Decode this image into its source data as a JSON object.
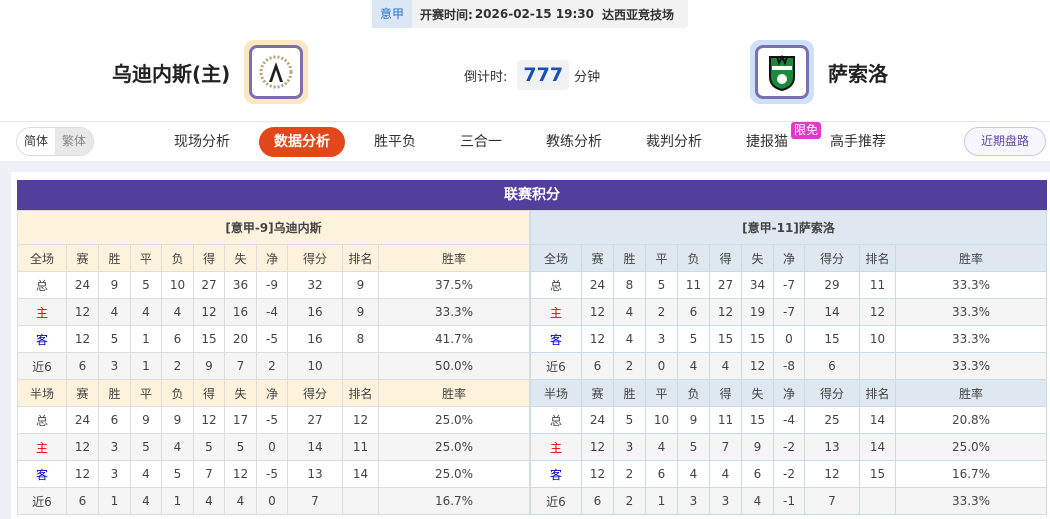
{
  "match": {
    "league": "意甲",
    "time_label": "开赛时间:",
    "time": "2026-02-15 19:30",
    "venue": "达西亚竞技场"
  },
  "home": {
    "name": "乌迪内斯(主)",
    "logo": "udinese-crest"
  },
  "away": {
    "name": "萨索洛",
    "logo": "sassuolo-crest"
  },
  "countdown": {
    "label": "倒计时:",
    "value": "777",
    "unit": "分钟"
  },
  "lang": {
    "simplified": "简体",
    "traditional": "繁体"
  },
  "nav": [
    "现场分析",
    "数据分析",
    "胜平负",
    "三合一",
    "教练分析",
    "裁判分析",
    "捷报猫",
    "高手推荐"
  ],
  "nav_active": "数据分析",
  "badge": "限免",
  "recent_button": "近期盘路",
  "colors": {
    "accent": "#e2461b",
    "title_bar": "#523f9b",
    "home_row": "#e00000",
    "away_row": "#0000cc"
  },
  "standings": {
    "title": "联赛积分",
    "columns_full": [
      "全场",
      "赛",
      "胜",
      "平",
      "负",
      "得",
      "失",
      "净",
      "得分",
      "排名",
      "胜率"
    ],
    "columns_half": [
      "半场",
      "赛",
      "胜",
      "平",
      "负",
      "得",
      "失",
      "净",
      "得分",
      "排名",
      "胜率"
    ],
    "home": {
      "header": "[意甲-9]乌迪内斯",
      "full": [
        [
          "总",
          "24",
          "9",
          "5",
          "10",
          "27",
          "36",
          "-9",
          "32",
          "9",
          "37.5%"
        ],
        [
          "主",
          "12",
          "4",
          "4",
          "4",
          "12",
          "16",
          "-4",
          "16",
          "9",
          "33.3%"
        ],
        [
          "客",
          "12",
          "5",
          "1",
          "6",
          "15",
          "20",
          "-5",
          "16",
          "8",
          "41.7%"
        ],
        [
          "近6",
          "6",
          "3",
          "1",
          "2",
          "9",
          "7",
          "2",
          "10",
          "",
          "50.0%"
        ]
      ],
      "half": [
        [
          "总",
          "24",
          "6",
          "9",
          "9",
          "12",
          "17",
          "-5",
          "27",
          "12",
          "25.0%"
        ],
        [
          "主",
          "12",
          "3",
          "5",
          "4",
          "5",
          "5",
          "0",
          "14",
          "11",
          "25.0%"
        ],
        [
          "客",
          "12",
          "3",
          "4",
          "5",
          "7",
          "12",
          "-5",
          "13",
          "14",
          "25.0%"
        ],
        [
          "近6",
          "6",
          "1",
          "4",
          "1",
          "4",
          "4",
          "0",
          "7",
          "",
          "16.7%"
        ]
      ]
    },
    "away": {
      "header": "[意甲-11]萨索洛",
      "full": [
        [
          "总",
          "24",
          "8",
          "5",
          "11",
          "27",
          "34",
          "-7",
          "29",
          "11",
          "33.3%"
        ],
        [
          "主",
          "12",
          "4",
          "2",
          "6",
          "12",
          "19",
          "-7",
          "14",
          "12",
          "33.3%"
        ],
        [
          "客",
          "12",
          "4",
          "3",
          "5",
          "15",
          "15",
          "0",
          "15",
          "10",
          "33.3%"
        ],
        [
          "近6",
          "6",
          "2",
          "0",
          "4",
          "4",
          "12",
          "-8",
          "6",
          "",
          "33.3%"
        ]
      ],
      "half": [
        [
          "总",
          "24",
          "5",
          "10",
          "9",
          "11",
          "15",
          "-4",
          "25",
          "14",
          "20.8%"
        ],
        [
          "主",
          "12",
          "3",
          "4",
          "5",
          "7",
          "9",
          "-2",
          "13",
          "14",
          "25.0%"
        ],
        [
          "客",
          "12",
          "2",
          "6",
          "4",
          "4",
          "6",
          "-2",
          "12",
          "15",
          "16.7%"
        ],
        [
          "近6",
          "6",
          "2",
          "1",
          "3",
          "3",
          "4",
          "-1",
          "7",
          "",
          "33.3%"
        ]
      ]
    }
  }
}
